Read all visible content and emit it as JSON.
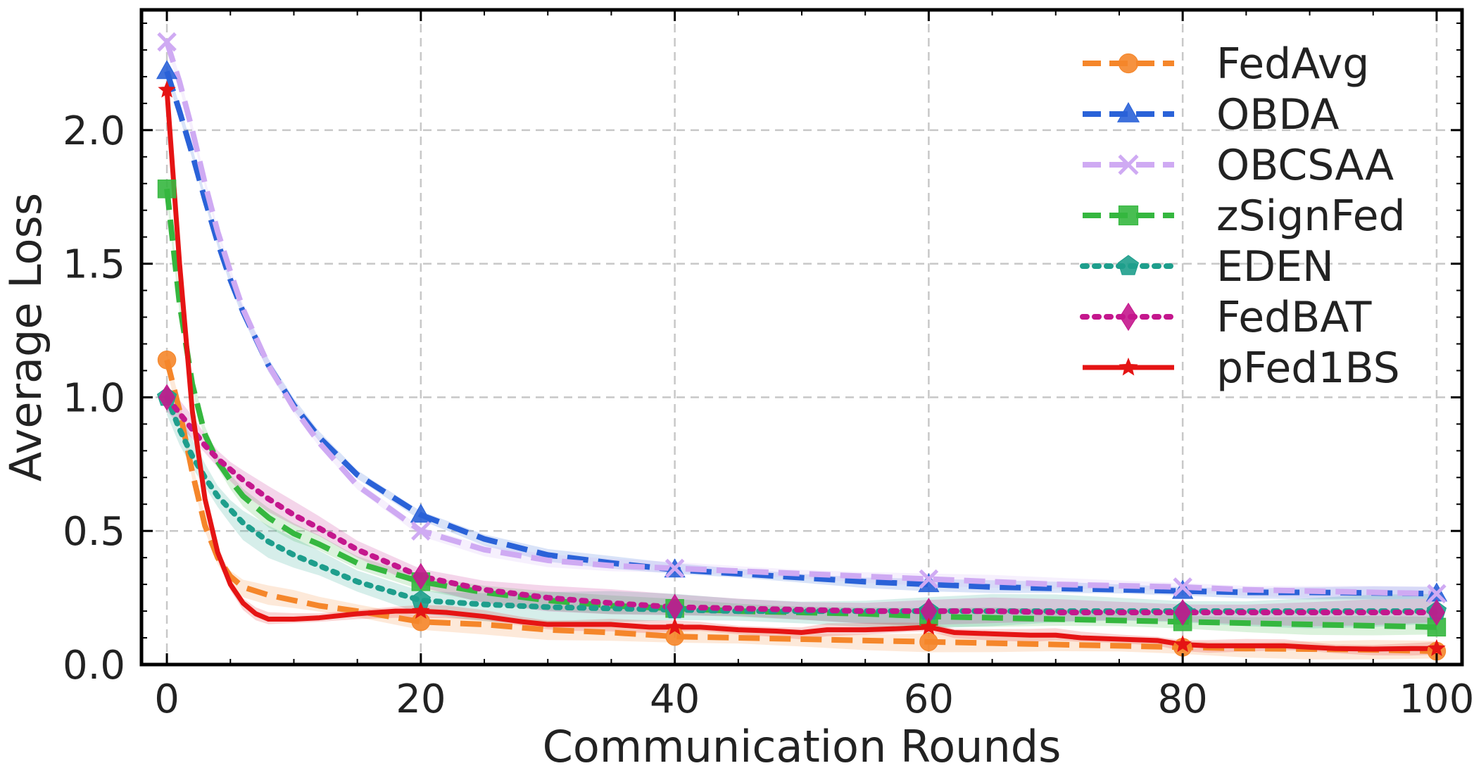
{
  "chart_data": {
    "type": "line",
    "title": "",
    "xlabel": "Communication Rounds",
    "ylabel": "Average Loss",
    "xlim": [
      -2,
      102
    ],
    "ylim": [
      0,
      2.45
    ],
    "xticks": [
      "0",
      "20",
      "40",
      "60",
      "80",
      "100"
    ],
    "yticks": [
      "0.0",
      "0.5",
      "1.0",
      "1.5",
      "2.0"
    ],
    "grid": true,
    "legend_position": "top-right",
    "series": [
      {
        "name": "FedAvg",
        "color": "#f5862a",
        "dash": "dashed",
        "marker": "circle",
        "x": [
          0,
          1,
          2,
          3,
          4,
          5,
          6,
          8,
          10,
          12,
          15,
          20,
          25,
          30,
          35,
          40,
          45,
          50,
          55,
          60,
          65,
          70,
          75,
          80,
          85,
          90,
          95,
          100
        ],
        "y": [
          1.14,
          0.95,
          0.72,
          0.52,
          0.4,
          0.33,
          0.29,
          0.26,
          0.24,
          0.22,
          0.2,
          0.16,
          0.15,
          0.13,
          0.12,
          0.105,
          0.1,
          0.095,
          0.09,
          0.085,
          0.08,
          0.075,
          0.07,
          0.065,
          0.06,
          0.058,
          0.055,
          0.05
        ],
        "band": 0.03
      },
      {
        "name": "OBDA",
        "color": "#2a62d8",
        "dash": "dashed",
        "marker": "triangle",
        "x": [
          0,
          1,
          2,
          3,
          4,
          5,
          6,
          8,
          10,
          12,
          15,
          20,
          25,
          30,
          35,
          40,
          45,
          50,
          55,
          60,
          65,
          70,
          75,
          80,
          85,
          90,
          95,
          100
        ],
        "y": [
          2.22,
          2.07,
          1.91,
          1.74,
          1.58,
          1.44,
          1.32,
          1.12,
          0.97,
          0.85,
          0.71,
          0.56,
          0.47,
          0.41,
          0.38,
          0.355,
          0.34,
          0.325,
          0.31,
          0.3,
          0.29,
          0.285,
          0.28,
          0.275,
          0.27,
          0.27,
          0.268,
          0.265
        ],
        "band": 0.02
      },
      {
        "name": "OBCSAA",
        "color": "#cfaaf3",
        "dash": "dashed",
        "marker": "x",
        "x": [
          0,
          1,
          2,
          3,
          4,
          5,
          6,
          8,
          10,
          12,
          15,
          20,
          25,
          30,
          35,
          40,
          45,
          50,
          55,
          60,
          65,
          70,
          75,
          80,
          85,
          90,
          95,
          100
        ],
        "y": [
          2.33,
          2.18,
          2.0,
          1.8,
          1.62,
          1.47,
          1.33,
          1.12,
          0.96,
          0.83,
          0.67,
          0.5,
          0.43,
          0.39,
          0.37,
          0.36,
          0.35,
          0.34,
          0.33,
          0.32,
          0.31,
          0.3,
          0.295,
          0.29,
          0.28,
          0.275,
          0.27,
          0.265
        ],
        "band": 0.02
      },
      {
        "name": "zSignFed",
        "color": "#35b73f",
        "dash": "dashed",
        "marker": "square",
        "x": [
          0,
          1,
          2,
          3,
          4,
          5,
          6,
          8,
          10,
          12,
          15,
          20,
          25,
          30,
          35,
          40,
          45,
          50,
          55,
          60,
          65,
          70,
          75,
          80,
          85,
          90,
          95,
          100
        ],
        "y": [
          1.78,
          1.35,
          1.05,
          0.86,
          0.76,
          0.69,
          0.63,
          0.55,
          0.49,
          0.45,
          0.38,
          0.31,
          0.27,
          0.24,
          0.22,
          0.21,
          0.2,
          0.195,
          0.19,
          0.18,
          0.175,
          0.17,
          0.165,
          0.16,
          0.155,
          0.15,
          0.145,
          0.14
        ],
        "band": 0.03
      },
      {
        "name": "EDEN",
        "color": "#1e9e8c",
        "dash": "dotted",
        "marker": "pentagon",
        "x": [
          0,
          1,
          2,
          3,
          4,
          5,
          6,
          8,
          10,
          12,
          15,
          20,
          25,
          30,
          35,
          40,
          45,
          50,
          55,
          60,
          65,
          70,
          75,
          80,
          85,
          90,
          95,
          100
        ],
        "y": [
          1.0,
          0.88,
          0.78,
          0.7,
          0.63,
          0.58,
          0.53,
          0.46,
          0.41,
          0.37,
          0.31,
          0.24,
          0.225,
          0.215,
          0.21,
          0.205,
          0.2,
          0.2,
          0.2,
          0.2,
          0.2,
          0.2,
          0.2,
          0.2,
          0.2,
          0.2,
          0.2,
          0.2
        ],
        "band": 0.05
      },
      {
        "name": "FedBAT",
        "color": "#c4178d",
        "dash": "dotted",
        "marker": "diamond",
        "x": [
          0,
          1,
          2,
          3,
          4,
          5,
          6,
          8,
          10,
          12,
          15,
          20,
          25,
          30,
          35,
          40,
          45,
          50,
          55,
          60,
          65,
          70,
          75,
          80,
          85,
          90,
          95,
          100
        ],
        "y": [
          1.0,
          0.94,
          0.88,
          0.82,
          0.77,
          0.73,
          0.69,
          0.62,
          0.56,
          0.51,
          0.43,
          0.33,
          0.28,
          0.25,
          0.23,
          0.215,
          0.21,
          0.205,
          0.2,
          0.2,
          0.2,
          0.195,
          0.195,
          0.195,
          0.195,
          0.195,
          0.195,
          0.195
        ],
        "band": 0.04
      },
      {
        "name": "pFed1BS",
        "color": "#e51414",
        "dash": "solid",
        "marker": "star",
        "x": [
          0,
          1,
          2,
          3,
          4,
          5,
          6,
          7,
          8,
          10,
          12,
          15,
          18,
          20,
          22,
          25,
          28,
          30,
          32,
          35,
          38,
          40,
          42,
          45,
          48,
          50,
          52,
          55,
          58,
          60,
          62,
          65,
          68,
          70,
          72,
          75,
          78,
          80,
          82,
          85,
          88,
          90,
          92,
          95,
          98,
          100
        ],
        "y": [
          2.15,
          1.5,
          0.95,
          0.62,
          0.42,
          0.3,
          0.23,
          0.19,
          0.17,
          0.17,
          0.175,
          0.19,
          0.2,
          0.2,
          0.195,
          0.18,
          0.16,
          0.15,
          0.15,
          0.15,
          0.14,
          0.14,
          0.14,
          0.13,
          0.125,
          0.12,
          0.13,
          0.13,
          0.135,
          0.14,
          0.12,
          0.115,
          0.11,
          0.11,
          0.1,
          0.095,
          0.09,
          0.075,
          0.07,
          0.07,
          0.07,
          0.065,
          0.06,
          0.058,
          0.06,
          0.06
        ],
        "band": 0.02
      }
    ],
    "marker_x": [
      0,
      20,
      40,
      60,
      80,
      100
    ]
  }
}
